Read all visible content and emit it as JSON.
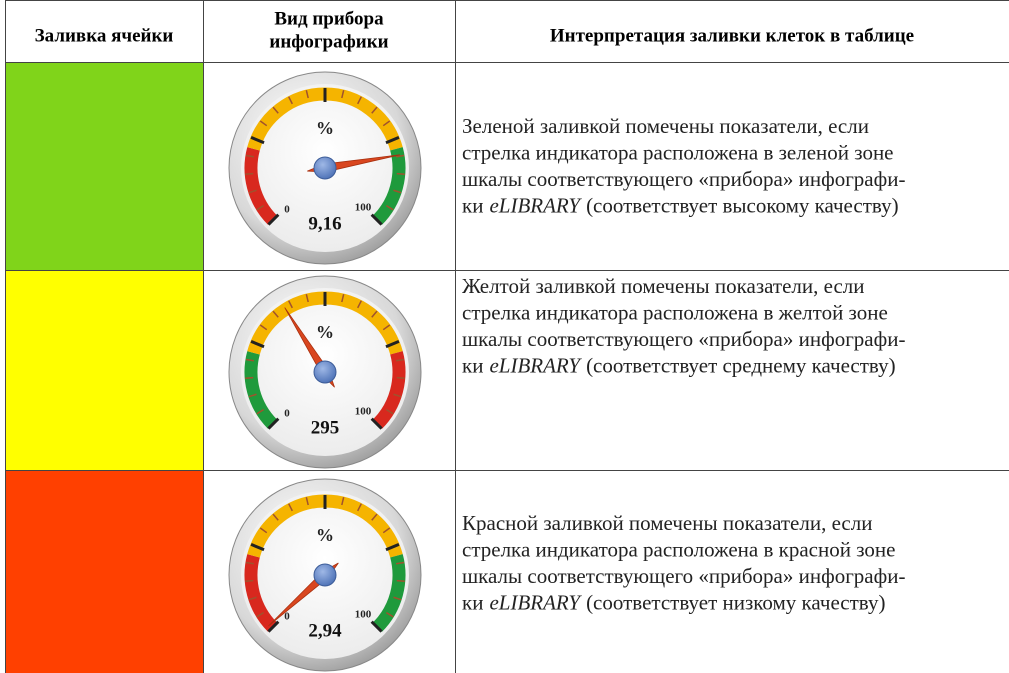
{
  "table": {
    "header": [
      "Заливка ячейки",
      [
        "Вид прибора",
        "инфографики"
      ],
      "Интерпретация заливки клеток в таблице"
    ],
    "rows": [
      {
        "gauge": {
          "unit": "%",
          "min": "0",
          "max": "100",
          "reading": "9,16"
        },
        "description": {
          "lines": [
            "Зеленой заливкой помечены показатели, если",
            "стрелка индикатора расположена в зеленой зоне",
            "шкалы соответствующего «прибора» инфографи-"
          ],
          "last_prefix": "ки",
          "italic": "eLIBRARY",
          "last_suffix": "(соответствует высокому качеству)"
        }
      },
      {
        "gauge": {
          "unit": "%",
          "min": "0",
          "max": "100",
          "reading": "295"
        },
        "description": {
          "lines": [
            "Желтой заливкой помечены показатели, если",
            "стрелка индикатора расположена в желтой зоне",
            "шкалы соответствующего «прибора» инфографи-"
          ],
          "last_prefix": "ки",
          "italic": "eLIBRARY",
          "last_suffix": "(соответствует среднему качеству)"
        }
      },
      {
        "gauge": {
          "unit": "%",
          "min": "0",
          "max": "100",
          "reading": "2,94"
        },
        "description": {
          "lines": [
            "Красной заливкой помечены показатели, если",
            "стрелка индикатора расположена в красной зоне",
            "шкалы соответствующего «прибора» инфографи-"
          ],
          "last_prefix": "ки",
          "italic": "eLIBRARY",
          "last_suffix": "(соответствует низкому качеству)"
        }
      }
    ]
  }
}
